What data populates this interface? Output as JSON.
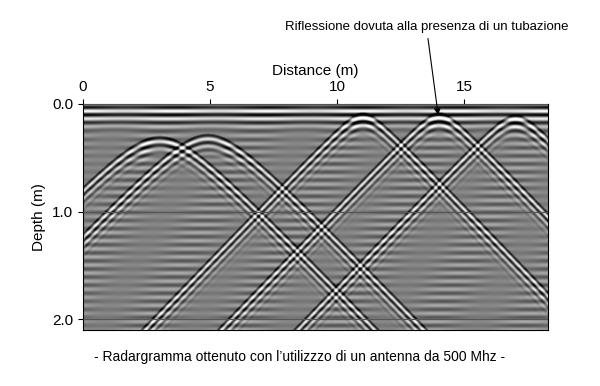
{
  "chart_data": {
    "type": "radargram",
    "xlabel": "Distance (m)",
    "ylabel": "Depth (m)",
    "xlim": [
      0,
      18.3
    ],
    "ylim": [
      2.1,
      0
    ],
    "xticks": [
      0,
      5,
      10,
      15
    ],
    "yticks": [
      {
        "value": 0,
        "label": "0.0"
      },
      {
        "value": 1,
        "label": "1.0"
      },
      {
        "value": 2,
        "label": "2.0"
      }
    ],
    "grid": true,
    "reflections": {
      "x": [
        3.0,
        4.9,
        11.0,
        14.0,
        17.0
      ],
      "depth": [
        0.35,
        0.33,
        0.13,
        0.13,
        0.15
      ]
    },
    "annotation": {
      "text": "Riflessione dovuta alla presenza di un tubazione",
      "x": 14.0,
      "depth": 0.13
    },
    "caption": "- Radargramma ottenuto con l’utilizzzo di un antenna da 500 Mhz -"
  }
}
